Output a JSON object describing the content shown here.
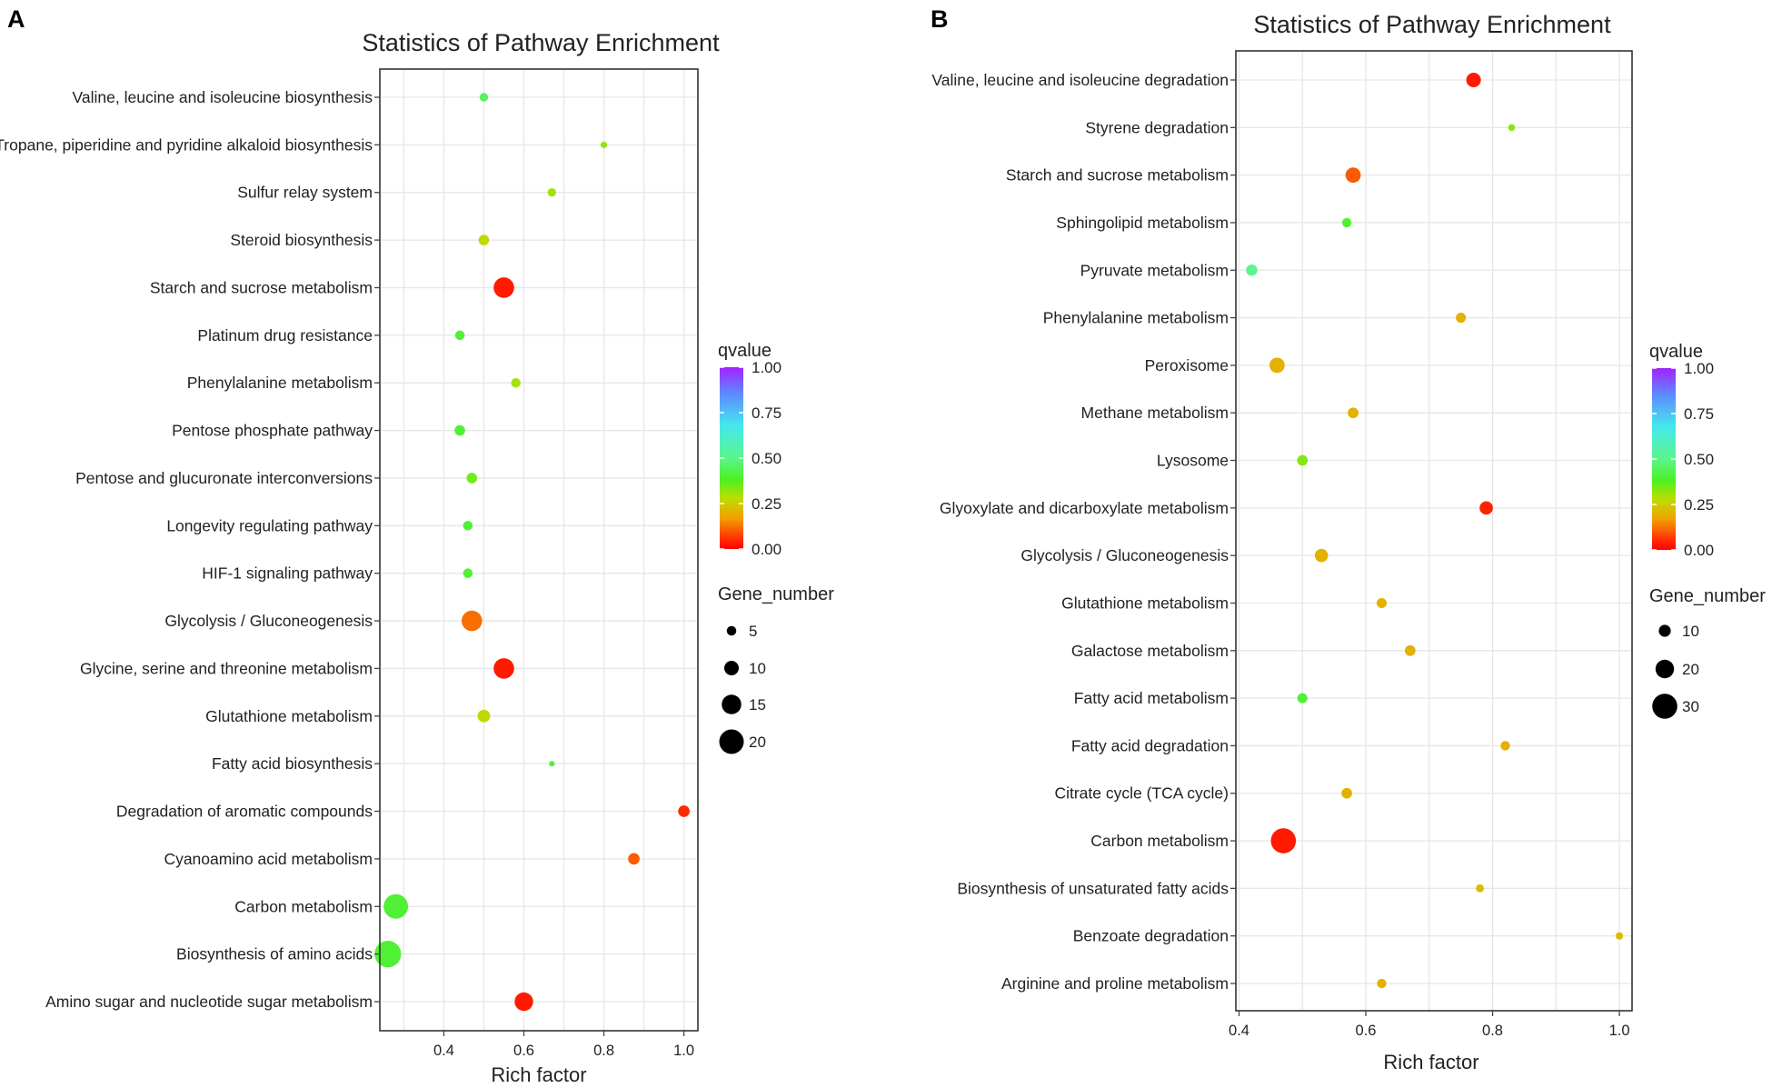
{
  "figure_labels": [
    "A",
    "B"
  ],
  "chart_data": [
    {
      "type": "scatter",
      "panel": "A",
      "title": "Statistics of Pathway Enrichment",
      "xlabel": "Rich factor",
      "ylabel": "",
      "xlim": [
        0.24,
        1.035
      ],
      "xticks": [
        0.4,
        0.6,
        0.8,
        1.0
      ],
      "xtick_labels": [
        "0.4",
        "0.6",
        "0.8",
        "1.0"
      ],
      "grid": true,
      "color_legend": {
        "title": "qvalue",
        "ticks": [
          "1.00",
          "0.75",
          "0.50",
          "0.25",
          "0.00"
        ],
        "values": [
          1.0,
          0.75,
          0.5,
          0.25,
          0.0
        ]
      },
      "size_legend": {
        "title": "Gene_number",
        "labels": [
          "5",
          "10",
          "15",
          "20"
        ],
        "values": [
          5,
          10,
          15,
          20
        ]
      },
      "points": [
        {
          "pathway": "Valine, leucine and isoleucine biosynthesis",
          "rich_factor": 0.5,
          "qvalue": 0.45,
          "gene_number": 4
        },
        {
          "pathway": "Tropane, piperidine and pyridine alkaloid biosynthesis",
          "rich_factor": 0.8,
          "qvalue": 0.32,
          "gene_number": 2
        },
        {
          "pathway": "Sulfur relay system",
          "rich_factor": 0.67,
          "qvalue": 0.3,
          "gene_number": 4
        },
        {
          "pathway": "Steroid biosynthesis",
          "rich_factor": 0.5,
          "qvalue": 0.27,
          "gene_number": 6
        },
        {
          "pathway": "Starch and sucrose metabolism",
          "rich_factor": 0.55,
          "qvalue": 0.03,
          "gene_number": 16
        },
        {
          "pathway": "Platinum drug resistance",
          "rich_factor": 0.44,
          "qvalue": 0.4,
          "gene_number": 5
        },
        {
          "pathway": "Phenylalanine metabolism",
          "rich_factor": 0.58,
          "qvalue": 0.3,
          "gene_number": 5
        },
        {
          "pathway": "Pentose phosphate pathway",
          "rich_factor": 0.44,
          "qvalue": 0.4,
          "gene_number": 6
        },
        {
          "pathway": "Pentose and glucuronate interconversions",
          "rich_factor": 0.47,
          "qvalue": 0.35,
          "gene_number": 6
        },
        {
          "pathway": "Longevity regulating pathway",
          "rich_factor": 0.46,
          "qvalue": 0.4,
          "gene_number": 5
        },
        {
          "pathway": "HIF-1 signaling pathway",
          "rich_factor": 0.46,
          "qvalue": 0.4,
          "gene_number": 5
        },
        {
          "pathway": "Glycolysis / Gluconeogenesis",
          "rich_factor": 0.47,
          "qvalue": 0.12,
          "gene_number": 16
        },
        {
          "pathway": "Glycine, serine and threonine metabolism",
          "rich_factor": 0.55,
          "qvalue": 0.03,
          "gene_number": 16
        },
        {
          "pathway": "Glutathione metabolism",
          "rich_factor": 0.5,
          "qvalue": 0.27,
          "gene_number": 8
        },
        {
          "pathway": "Fatty acid biosynthesis",
          "rich_factor": 0.67,
          "qvalue": 0.4,
          "gene_number": 1
        },
        {
          "pathway": "Degradation of aromatic compounds",
          "rich_factor": 1.0,
          "qvalue": 0.05,
          "gene_number": 7
        },
        {
          "pathway": "Cyanoamino acid metabolism",
          "rich_factor": 0.875,
          "qvalue": 0.1,
          "gene_number": 7
        },
        {
          "pathway": "Carbon metabolism",
          "rich_factor": 0.28,
          "qvalue": 0.4,
          "gene_number": 20
        },
        {
          "pathway": "Biosynthesis of amino acids",
          "rich_factor": 0.26,
          "qvalue": 0.4,
          "gene_number": 22
        },
        {
          "pathway": "Amino sugar and nucleotide sugar metabolism",
          "rich_factor": 0.6,
          "qvalue": 0.03,
          "gene_number": 14
        }
      ]
    },
    {
      "type": "scatter",
      "panel": "B",
      "title": "Statistics of Pathway Enrichment",
      "xlabel": "Rich factor",
      "ylabel": "",
      "xlim": [
        0.395,
        1.02
      ],
      "xticks": [
        0.4,
        0.6,
        0.8,
        1.0
      ],
      "xtick_labels": [
        "0.4",
        "0.6",
        "0.8",
        "1.0"
      ],
      "grid": true,
      "color_legend": {
        "title": "qvalue",
        "ticks": [
          "1.00",
          "0.75",
          "0.50",
          "0.25",
          "0.00"
        ],
        "values": [
          1.0,
          0.75,
          0.5,
          0.25,
          0.0
        ]
      },
      "size_legend": {
        "title": "Gene_number",
        "labels": [
          "10",
          "20",
          "30"
        ],
        "values": [
          10,
          20,
          30
        ]
      },
      "points": [
        {
          "pathway": "Valine, leucine and isoleucine degradation",
          "rich_factor": 0.77,
          "qvalue": 0.03,
          "gene_number": 14
        },
        {
          "pathway": "Styrene degradation",
          "rich_factor": 0.83,
          "qvalue": 0.33,
          "gene_number": 2
        },
        {
          "pathway": "Starch and sucrose metabolism",
          "rich_factor": 0.58,
          "qvalue": 0.1,
          "gene_number": 15
        },
        {
          "pathway": "Sphingolipid metabolism",
          "rich_factor": 0.57,
          "qvalue": 0.4,
          "gene_number": 6
        },
        {
          "pathway": "Pyruvate metabolism",
          "rich_factor": 0.42,
          "qvalue": 0.5,
          "gene_number": 9
        },
        {
          "pathway": "Phenylalanine metabolism",
          "rich_factor": 0.75,
          "qvalue": 0.2,
          "gene_number": 7
        },
        {
          "pathway": "Peroxisome",
          "rich_factor": 0.46,
          "qvalue": 0.2,
          "gene_number": 15
        },
        {
          "pathway": "Methane metabolism",
          "rich_factor": 0.58,
          "qvalue": 0.2,
          "gene_number": 8
        },
        {
          "pathway": "Lysosome",
          "rich_factor": 0.5,
          "qvalue": 0.33,
          "gene_number": 8
        },
        {
          "pathway": "Glyoxylate and dicarboxylate metabolism",
          "rich_factor": 0.79,
          "qvalue": 0.04,
          "gene_number": 12
        },
        {
          "pathway": "Glycolysis / Gluconeogenesis",
          "rich_factor": 0.53,
          "qvalue": 0.2,
          "gene_number": 12
        },
        {
          "pathway": "Glutathione metabolism",
          "rich_factor": 0.625,
          "qvalue": 0.2,
          "gene_number": 7
        },
        {
          "pathway": "Galactose metabolism",
          "rich_factor": 0.67,
          "qvalue": 0.2,
          "gene_number": 8
        },
        {
          "pathway": "Fatty acid metabolism",
          "rich_factor": 0.5,
          "qvalue": 0.4,
          "gene_number": 7
        },
        {
          "pathway": "Fatty acid degradation",
          "rich_factor": 0.82,
          "qvalue": 0.2,
          "gene_number": 6
        },
        {
          "pathway": "Citrate cycle (TCA cycle)",
          "rich_factor": 0.57,
          "qvalue": 0.2,
          "gene_number": 8
        },
        {
          "pathway": "Carbon metabolism",
          "rich_factor": 0.47,
          "qvalue": 0.03,
          "gene_number": 30
        },
        {
          "pathway": "Biosynthesis of unsaturated fatty acids",
          "rich_factor": 0.78,
          "qvalue": 0.22,
          "gene_number": 4
        },
        {
          "pathway": "Benzoate degradation",
          "rich_factor": 1.0,
          "qvalue": 0.22,
          "gene_number": 3
        },
        {
          "pathway": "Arginine and proline metabolism",
          "rich_factor": 0.625,
          "qvalue": 0.2,
          "gene_number": 6
        }
      ]
    }
  ]
}
